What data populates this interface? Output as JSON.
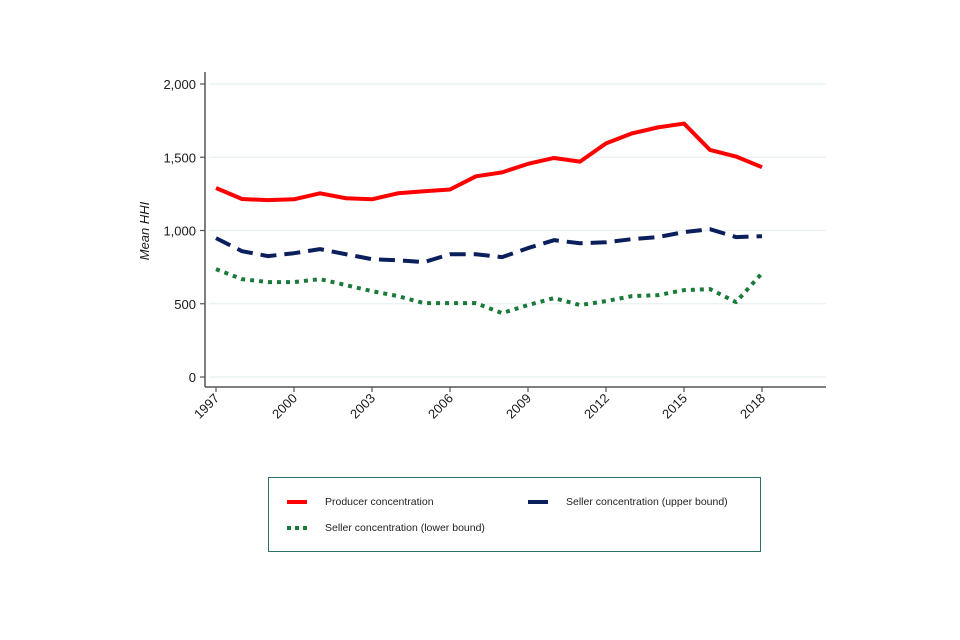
{
  "chart_data": {
    "type": "line",
    "title": "",
    "xlabel": "",
    "ylabel": "Mean HHI",
    "x": [
      1997,
      1998,
      1999,
      2000,
      2001,
      2002,
      2003,
      2004,
      2005,
      2006,
      2007,
      2008,
      2009,
      2010,
      2011,
      2012,
      2013,
      2014,
      2015,
      2016,
      2017,
      2018
    ],
    "xticks": [
      "1997",
      "2000",
      "2003",
      "2006",
      "2009",
      "2012",
      "2015",
      "2018"
    ],
    "xlim": [
      1997,
      2021
    ],
    "ylim": [
      0,
      2000
    ],
    "yticks": [
      "0",
      "500",
      "1,000",
      "1,500",
      "2,000"
    ],
    "grid": true,
    "legend_position": "bottom",
    "series": [
      {
        "name": "Producer concentration",
        "style": "solid",
        "color": "#ff0000",
        "values": [
          1290,
          1215,
          1207,
          1213,
          1254,
          1220,
          1213,
          1254,
          1268,
          1280,
          1370,
          1397,
          1455,
          1495,
          1470,
          1595,
          1663,
          1704,
          1730,
          1550,
          1505,
          1432
        ]
      },
      {
        "name": "Seller concentration (upper bound)",
        "style": "dashed",
        "color": "#0a1f5c",
        "values": [
          948,
          859,
          825,
          845,
          873,
          838,
          804,
          797,
          784,
          838,
          838,
          818,
          880,
          934,
          913,
          920,
          941,
          955,
          989,
          1009,
          955,
          961
        ]
      },
      {
        "name": "Seller concentration (lower bound)",
        "style": "dotted",
        "color": "#1a7a3a",
        "values": [
          736,
          668,
          648,
          648,
          668,
          627,
          586,
          552,
          504,
          504,
          504,
          436,
          491,
          539,
          491,
          518,
          552,
          559,
          593,
          600,
          511,
          709
        ]
      }
    ]
  },
  "legend": {
    "items": [
      {
        "label": "Producer concentration"
      },
      {
        "label": "Seller concentration (upper bound)"
      },
      {
        "label": "Seller concentration (lower bound)"
      }
    ]
  }
}
